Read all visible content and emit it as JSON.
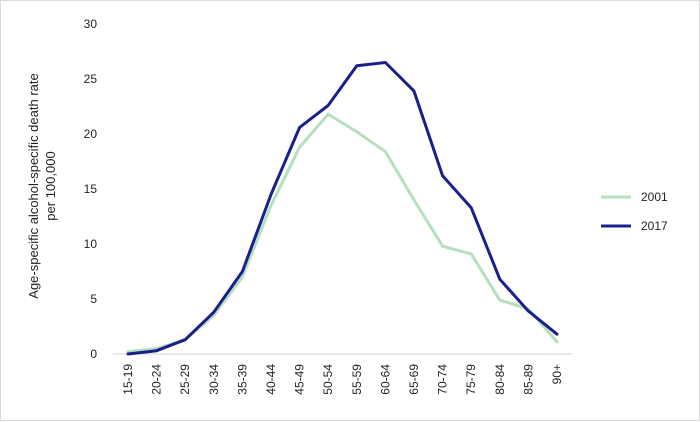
{
  "chart_data": {
    "type": "line",
    "title": "",
    "xlabel": "",
    "ylabel_lines": [
      "Age-specific alcohol-specific death rate",
      "per 100,000"
    ],
    "categories": [
      "15-19",
      "20-24",
      "25-29",
      "30-34",
      "35-39",
      "40-44",
      "45-49",
      "50-54",
      "55-59",
      "60-64",
      "65-69",
      "70-74",
      "75-79",
      "80-84",
      "85-89",
      "90+"
    ],
    "ylim": [
      0,
      30
    ],
    "yticks": [
      0,
      5,
      10,
      15,
      20,
      25,
      30
    ],
    "grid": false,
    "legend_position": "right",
    "series": [
      {
        "name": "2001",
        "color": "#b6dfc0",
        "values": [
          0.2,
          0.5,
          1.3,
          3.5,
          7.0,
          13.5,
          18.8,
          21.8,
          20.2,
          18.4,
          14.0,
          9.8,
          9.1,
          4.9,
          4.1,
          1.1
        ]
      },
      {
        "name": "2017",
        "color": "#1b1f8c",
        "values": [
          0.0,
          0.3,
          1.3,
          3.8,
          7.5,
          14.5,
          20.6,
          22.6,
          26.2,
          26.5,
          23.9,
          16.2,
          13.3,
          6.8,
          3.9,
          1.8
        ]
      }
    ]
  }
}
